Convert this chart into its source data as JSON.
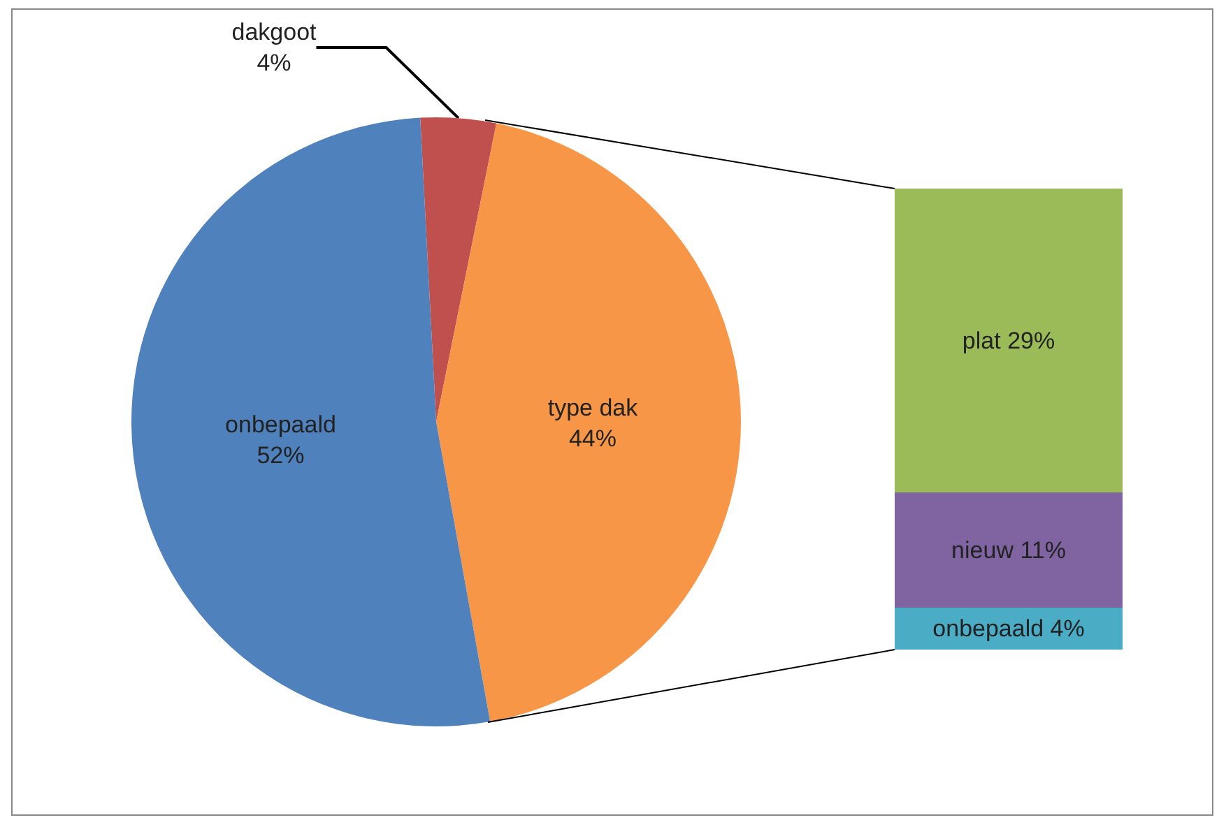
{
  "chart_data": [
    {
      "type": "pie",
      "categories": [
        "dakgoot",
        "type dak",
        "onbepaald"
      ],
      "values": [
        4,
        44,
        52
      ],
      "value_labels": [
        "4%",
        "44%",
        "52%"
      ],
      "colors": [
        "#c0504d",
        "#f79646",
        "#4f81bd"
      ]
    },
    {
      "type": "bar",
      "stacked": true,
      "categories": [
        null
      ],
      "tick_labels": false,
      "series": [
        {
          "name": "onbepaald",
          "color": "#4bacc6",
          "values": [
            4
          ],
          "value_labels": [
            "4%"
          ]
        },
        {
          "name": "nieuw",
          "color": "#8064a2",
          "values": [
            11
          ],
          "value_labels": [
            "11%"
          ]
        },
        {
          "name": "plat",
          "color": "#9bbb59",
          "values": [
            29
          ],
          "value_labels": [
            "29%"
          ]
        }
      ]
    }
  ]
}
